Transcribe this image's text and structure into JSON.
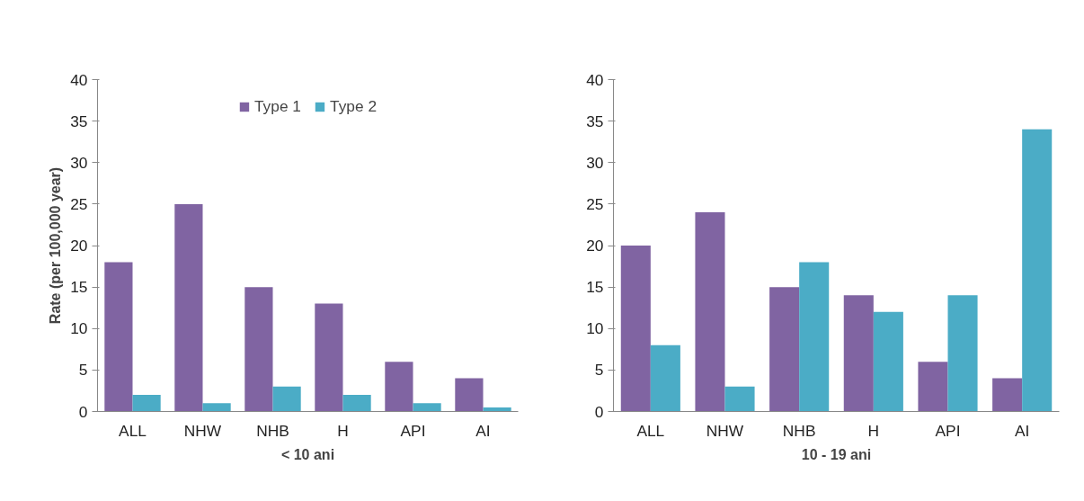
{
  "chart_data": [
    {
      "type": "bar",
      "xlabel": "< 10 ani",
      "ylabel": "Rate (per 100,000 year)",
      "categories": [
        "ALL",
        "NHW",
        "NHB",
        "H",
        "API",
        "AI"
      ],
      "series": [
        {
          "name": "Type 1",
          "color": "#8064a2",
          "values": [
            18,
            25,
            15,
            13,
            6,
            4
          ]
        },
        {
          "name": "Type 2",
          "color": "#4bacc6",
          "values": [
            2,
            1,
            3,
            2,
            1,
            0.5
          ]
        }
      ],
      "ylim": [
        0,
        40
      ],
      "yticks": [
        0,
        5,
        10,
        15,
        20,
        25,
        30,
        35,
        40
      ],
      "grid": false,
      "legend": "top"
    },
    {
      "type": "bar",
      "xlabel": "10 - 19 ani",
      "categories": [
        "ALL",
        "NHW",
        "NHB",
        "H",
        "API",
        "AI"
      ],
      "series": [
        {
          "color": "#8064a2",
          "values": [
            20,
            24,
            15,
            14,
            6,
            4
          ]
        },
        {
          "color": "#4bacc6",
          "values": [
            8,
            3,
            18,
            12,
            14,
            34
          ]
        }
      ],
      "ylim": [
        0,
        40
      ],
      "yticks": [
        0,
        5,
        10,
        15,
        20,
        25,
        30,
        35,
        40
      ],
      "grid": false,
      "legend": false
    }
  ]
}
